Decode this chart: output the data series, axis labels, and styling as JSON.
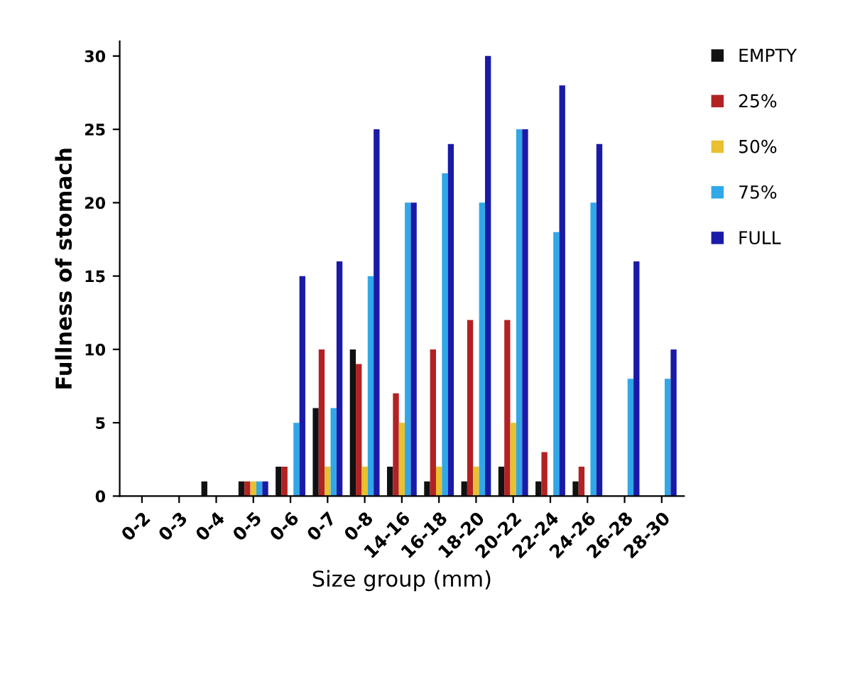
{
  "chart_data": {
    "type": "bar",
    "xlabel": "Size group (mm)",
    "ylabel": "Fullness of stomach",
    "categories": [
      "0-2",
      "0-3",
      "0-4",
      "0-5",
      "0-6",
      "0-7",
      "0-8",
      "14-16",
      "16-18",
      "18-20",
      "20-22",
      "22-24",
      "24-26",
      "26-28",
      "28-30"
    ],
    "series": [
      {
        "name": "EMPTY",
        "color": "#111111",
        "values": [
          0,
          0,
          1,
          1,
          2,
          6,
          10,
          2,
          1,
          1,
          2,
          1,
          1,
          0,
          0
        ]
      },
      {
        "name": "25%",
        "color": "#b22222",
        "values": [
          0,
          0,
          0,
          1,
          2,
          10,
          9,
          7,
          10,
          12,
          12,
          3,
          2,
          0,
          0
        ]
      },
      {
        "name": "50%",
        "color": "#e8c030",
        "values": [
          0,
          0,
          0,
          1,
          0,
          2,
          2,
          5,
          2,
          2,
          5,
          0,
          0,
          0,
          0
        ]
      },
      {
        "name": "75%",
        "color": "#30a8e8",
        "values": [
          0,
          0,
          0,
          1,
          5,
          6,
          15,
          20,
          22,
          20,
          25,
          18,
          20,
          8,
          8
        ]
      },
      {
        "name": "FULL",
        "color": "#1a1aa8",
        "values": [
          0,
          0,
          0,
          1,
          15,
          16,
          25,
          20,
          24,
          30,
          25,
          28,
          24,
          16,
          10
        ]
      }
    ],
    "ylim": [
      0,
      31
    ],
    "yticks": [
      0,
      5,
      10,
      15,
      20,
      25,
      30
    ],
    "grid": false,
    "legend": "top right"
  }
}
